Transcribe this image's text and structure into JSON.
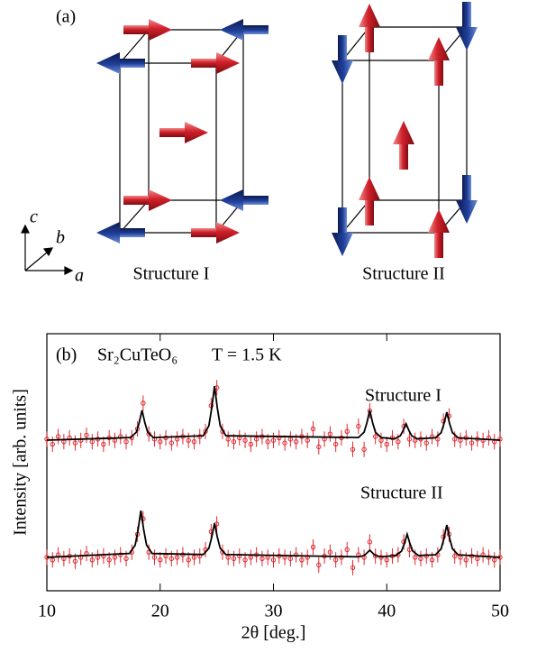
{
  "diagram": {
    "panel_label": "(a)",
    "axes": {
      "c": "c",
      "b": "b",
      "a": "a"
    },
    "structures": [
      "Structure I",
      "Structure II"
    ]
  },
  "chart_data": {
    "type": "scatter",
    "panel_label": "(b)",
    "compound": "Sr₂CuTeO₆",
    "condition": "T = 1.5 K",
    "x_label": "2θ [deg.]",
    "y_label": "Intensity [arb. units]",
    "xlim": [
      10,
      50
    ],
    "xticks": [
      10,
      20,
      30,
      40,
      50
    ],
    "ylim": [
      0,
      10
    ],
    "error": 0.3,
    "x": [
      10,
      10.5,
      11,
      11.5,
      12,
      12.5,
      13,
      13.5,
      14,
      14.5,
      15,
      15.5,
      16,
      16.5,
      17,
      17.5,
      18,
      18.5,
      19,
      19.5,
      20,
      20.5,
      21,
      21.5,
      22,
      22.5,
      23,
      23.5,
      24,
      24.5,
      25,
      25.5,
      26,
      26.5,
      27,
      27.5,
      28,
      28.5,
      29,
      29.5,
      30,
      30.5,
      31,
      31.5,
      32,
      32.5,
      33,
      33.5,
      34,
      34.5,
      35,
      35.5,
      36,
      36.5,
      37,
      37.5,
      38,
      38.5,
      39,
      39.5,
      40,
      40.5,
      41,
      41.5,
      42,
      42.5,
      43,
      43.5,
      44,
      44.5,
      45,
      45.5,
      46,
      46.5,
      47,
      47.5,
      48,
      48.5,
      49,
      49.5,
      50
    ],
    "series": [
      {
        "name": "Structure I",
        "color": "#e0282e",
        "values": [
          5.9,
          5.7,
          6.0,
          5.8,
          5.95,
          5.75,
          5.85,
          6.05,
          5.8,
          5.9,
          5.7,
          5.95,
          5.85,
          6.0,
          5.8,
          5.95,
          6.3,
          7.3,
          6.1,
          5.9,
          5.8,
          5.95,
          5.75,
          5.9,
          6.0,
          5.85,
          5.8,
          6.0,
          6.2,
          7.2,
          7.9,
          6.2,
          5.9,
          5.8,
          5.95,
          5.85,
          5.7,
          5.9,
          6.0,
          5.8,
          5.85,
          5.95,
          5.75,
          5.9,
          5.8,
          6.0,
          5.85,
          6.3,
          5.6,
          5.9,
          6.1,
          5.7,
          5.95,
          6.2,
          5.5,
          6.4,
          5.5,
          7.0,
          6.0,
          5.85,
          5.7,
          5.95,
          5.8,
          6.4,
          5.9,
          5.85,
          5.9,
          5.75,
          6.0,
          5.9,
          6.6,
          6.8,
          5.9,
          5.85,
          5.95,
          5.75,
          5.9,
          5.85,
          5.95,
          5.8,
          5.9
        ],
        "fit": {
          "color": "#000000",
          "x": [
            10,
            17.4,
            17.9,
            18.15,
            18.4,
            18.65,
            18.9,
            19.4,
            23.8,
            24.3,
            24.55,
            24.8,
            25.05,
            25.3,
            25.8,
            37.5,
            38.0,
            38.25,
            38.5,
            38.75,
            39.0,
            39.5,
            40.7,
            41.2,
            41.45,
            41.7,
            41.95,
            42.2,
            42.7,
            44.3,
            44.8,
            45.05,
            45.3,
            45.55,
            45.8,
            46.3,
            50
          ],
          "values": [
            5.86,
            5.96,
            6.17,
            6.54,
            7.02,
            6.54,
            6.17,
            5.96,
            6.03,
            6.42,
            7.1,
            7.96,
            7.1,
            6.42,
            6.03,
            5.96,
            6.17,
            6.54,
            7.02,
            6.54,
            6.17,
            5.96,
            5.91,
            6.03,
            6.24,
            6.5,
            6.24,
            6.03,
            5.91,
            5.95,
            6.15,
            6.5,
            6.95,
            6.5,
            6.15,
            5.95,
            5.86
          ]
        }
      },
      {
        "name": "Structure II",
        "color": "#e0282e",
        "values": [
          1.3,
          1.2,
          1.4,
          1.25,
          1.35,
          1.15,
          1.3,
          1.45,
          1.2,
          1.3,
          1.35,
          1.2,
          1.3,
          1.4,
          1.25,
          1.5,
          2.2,
          2.8,
          1.5,
          1.3,
          1.2,
          1.35,
          1.25,
          1.3,
          1.4,
          1.2,
          1.3,
          1.35,
          1.6,
          2.3,
          2.6,
          1.5,
          1.3,
          1.25,
          1.35,
          1.2,
          1.3,
          1.4,
          1.25,
          1.3,
          1.2,
          1.35,
          1.3,
          1.25,
          1.4,
          1.2,
          1.3,
          1.7,
          1.0,
          1.35,
          1.5,
          1.2,
          1.3,
          1.6,
          0.9,
          1.4,
          1.3,
          1.9,
          1.35,
          1.3,
          1.2,
          1.35,
          1.4,
          1.9,
          1.6,
          1.3,
          1.25,
          1.35,
          1.2,
          1.4,
          2.1,
          2.2,
          1.35,
          1.3,
          1.2,
          1.35,
          1.25,
          1.4,
          1.3,
          1.2,
          1.3
        ],
        "fit": {
          "color": "#000000",
          "x": [
            10,
            17.3,
            17.8,
            18.05,
            18.3,
            18.55,
            18.8,
            19.3,
            23.8,
            24.3,
            24.55,
            24.8,
            25.05,
            25.3,
            25.8,
            37.5,
            38.0,
            38.25,
            38.5,
            38.75,
            39.0,
            39.5,
            40.8,
            41.3,
            41.55,
            41.8,
            42.05,
            42.3,
            42.8,
            44.3,
            44.8,
            45.05,
            45.3,
            45.55,
            45.8,
            46.3,
            50
          ],
          "values": [
            1.3,
            1.45,
            1.78,
            2.37,
            3.12,
            2.37,
            1.78,
            1.45,
            1.41,
            1.65,
            2.08,
            2.63,
            2.08,
            1.65,
            1.41,
            1.32,
            1.37,
            1.47,
            1.58,
            1.47,
            1.37,
            1.32,
            1.37,
            1.54,
            1.83,
            2.2,
            1.83,
            1.54,
            1.37,
            1.4,
            1.63,
            2.04,
            2.56,
            2.04,
            1.63,
            1.4,
            1.3
          ]
        }
      }
    ]
  }
}
